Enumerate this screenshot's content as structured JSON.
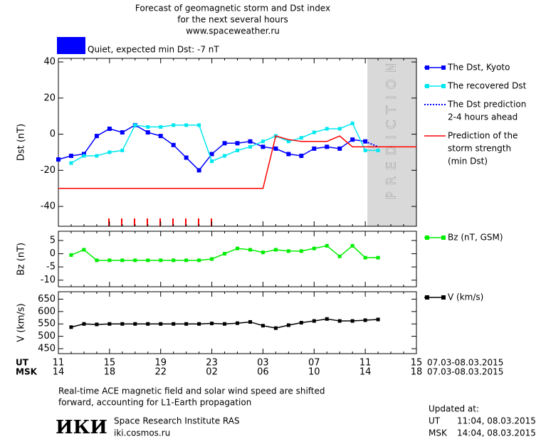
{
  "header": {
    "title": [
      "Forecast of geomagnetic storm and Dst index",
      "for the next several hours",
      "www.spaceweather.ru"
    ]
  },
  "status": {
    "text": "Quiet, expected min Dst: -7 nT",
    "color": "#0000ff"
  },
  "time_axis": {
    "ut_label": "UT",
    "msk_label": "MSK",
    "date_range": "07.03-08.03.2015",
    "ut": [
      "11",
      null,
      null,
      null,
      "15",
      null,
      null,
      null,
      "19",
      null,
      null,
      null,
      "23",
      null,
      null,
      null,
      "03",
      null,
      null,
      null,
      "07",
      null,
      null,
      null,
      "11",
      null,
      null,
      null,
      "15"
    ],
    "msk": [
      "14",
      null,
      null,
      null,
      "18",
      null,
      null,
      null,
      "22",
      null,
      null,
      null,
      "02",
      null,
      null,
      null,
      "06",
      null,
      null,
      null,
      "10",
      null,
      null,
      null,
      "14",
      null,
      null,
      null,
      "18"
    ]
  },
  "chart_data": [
    {
      "type": "line",
      "y_label": "Dst (nT)",
      "ylim": [
        -51,
        42
      ],
      "yticks": [
        -40,
        -20,
        0,
        20,
        40
      ],
      "prediction_label": "PREDICTION",
      "series": [
        {
          "name": [
            "The Dst, Kyoto"
          ],
          "color": "#0000ff",
          "marker": "square",
          "style": "solid",
          "values": [
            -14,
            -12,
            -11,
            -1,
            3,
            1,
            5,
            1,
            -1,
            -6,
            -13,
            -20,
            -11,
            -5,
            -5,
            -4,
            -7,
            -8,
            -11,
            -12,
            -8,
            -7,
            -8,
            -3,
            -4,
            null,
            null,
            null,
            null
          ]
        },
        {
          "name": [
            "The recovered Dst"
          ],
          "color": "#00e8f0",
          "marker": "square",
          "style": "solid",
          "values": [
            null,
            -16,
            -12,
            -12,
            -10,
            -9,
            5,
            4,
            4,
            5,
            5,
            5,
            -15,
            -12,
            -9,
            -7,
            -4,
            -1,
            -4,
            -2,
            1,
            3,
            3,
            6,
            -9,
            -9,
            null,
            null,
            null
          ]
        },
        {
          "name": [
            "The Dst prediction",
            "2-4 hours ahead"
          ],
          "color": "#0000ff",
          "marker": "none",
          "style": "dotted",
          "values": [
            null,
            null,
            null,
            null,
            null,
            null,
            null,
            null,
            null,
            null,
            null,
            null,
            null,
            null,
            null,
            null,
            null,
            null,
            null,
            null,
            null,
            null,
            null,
            null,
            -4,
            -7,
            null,
            null,
            null
          ]
        },
        {
          "name": [
            "Prediction of the",
            "storm strength",
            "(min Dst)"
          ],
          "color": "#ff0000",
          "marker": "none",
          "style": "solid",
          "values": [
            -30,
            -30,
            -30,
            -30,
            -30,
            -30,
            -30,
            -30,
            -30,
            -30,
            -30,
            -30,
            -30,
            -30,
            -30,
            -30,
            -30,
            -1,
            -3,
            -4,
            -4,
            -4,
            -1,
            -7,
            -7,
            -7,
            -7,
            -7,
            -7
          ]
        }
      ]
    },
    {
      "type": "line",
      "y_label": "Bz (nT)",
      "ylim": [
        -12.5,
        8.5
      ],
      "yticks": [
        -10,
        -5,
        0,
        5
      ],
      "series": [
        {
          "name": [
            "Bz (nT, GSM)"
          ],
          "color": "#00ee00",
          "marker": "square",
          "style": "solid",
          "values": [
            null,
            -0.5,
            1.5,
            -2.5,
            -2.5,
            -2.5,
            -2.5,
            -2.5,
            -2.5,
            -2.5,
            -2.5,
            -2.5,
            -2,
            0,
            2,
            1.5,
            0.5,
            1.5,
            1,
            1,
            2,
            3,
            -1,
            3,
            -1.5,
            -1.5,
            null,
            null,
            null
          ]
        }
      ]
    },
    {
      "type": "line",
      "y_label": "V (km/s)",
      "ylim": [
        430,
        680
      ],
      "yticks": [
        450,
        500,
        550,
        600,
        650
      ],
      "series": [
        {
          "name": [
            "V (km/s)"
          ],
          "color": "#000000",
          "marker": "square",
          "style": "solid",
          "values": [
            null,
            537,
            550,
            548,
            550,
            550,
            550,
            550,
            550,
            550,
            550,
            550,
            552,
            550,
            553,
            558,
            543,
            533,
            545,
            555,
            562,
            570,
            562,
            562,
            565,
            568,
            null,
            null,
            null
          ]
        }
      ]
    }
  ],
  "note": [
    "Real-time ACE magnetic field and solar wind speed are shifted",
    "forward, accounting for L1-Earth propagation"
  ],
  "institute": {
    "logo": "ИКИ",
    "name": "Space Research Institute RAS",
    "url": "iki.cosmos.ru"
  },
  "updated": {
    "title": "Updated at:",
    "rows": [
      [
        "UT",
        "11:04, 08.03.2015"
      ],
      [
        "MSK",
        "14:04, 08.03.2015"
      ]
    ]
  }
}
